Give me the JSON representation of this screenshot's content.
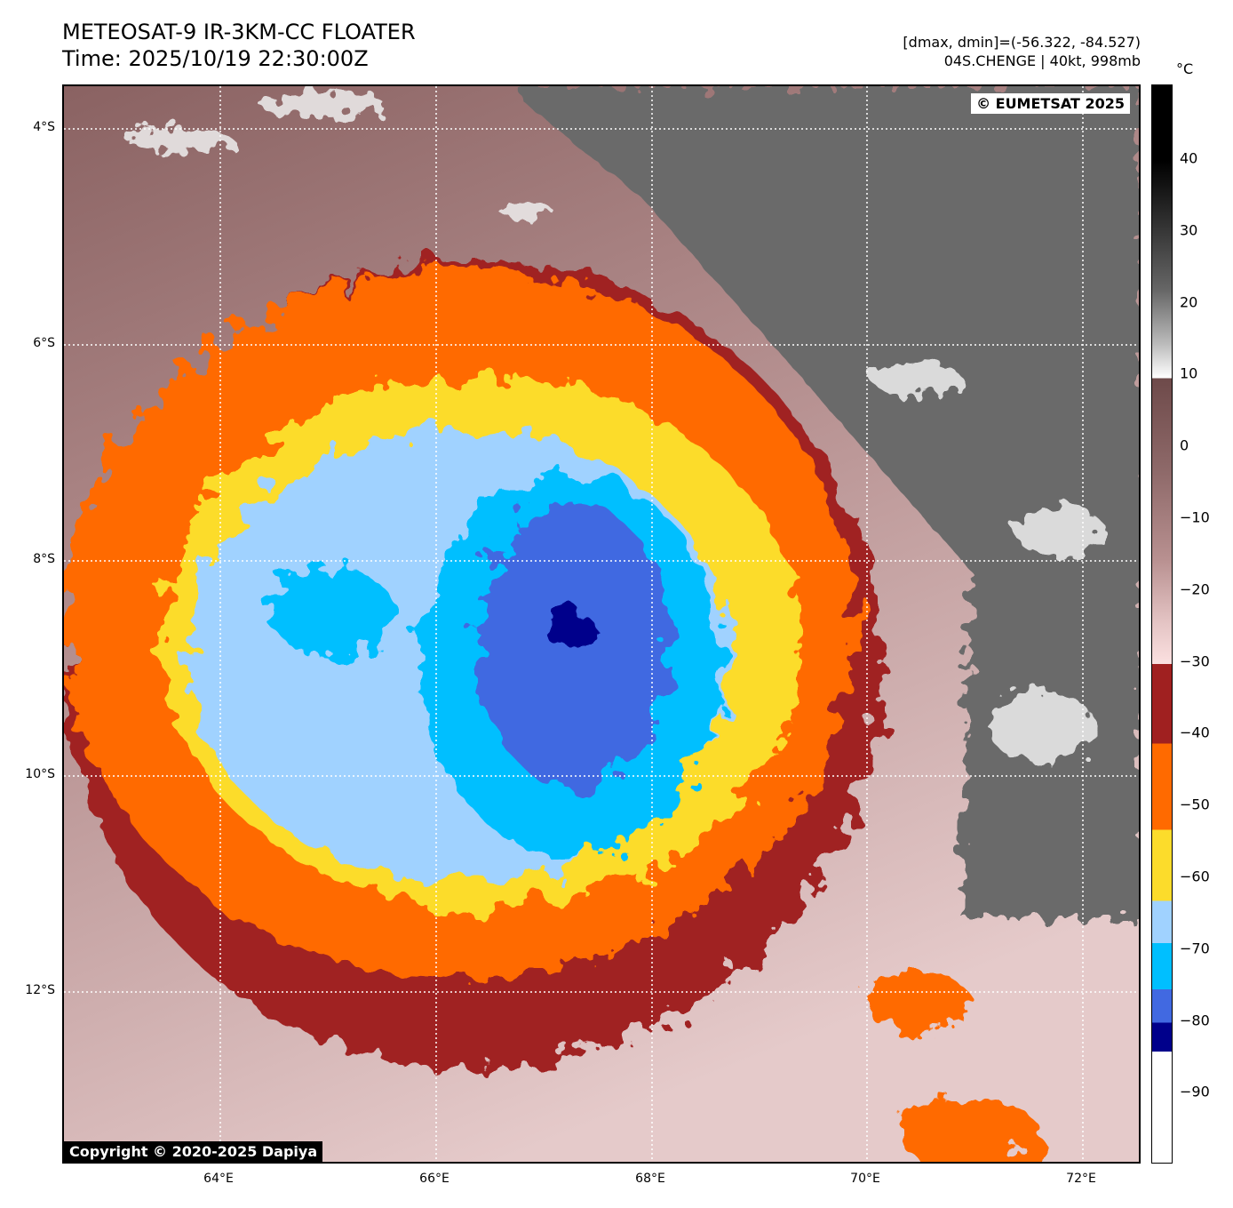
{
  "header": {
    "title": "METEOSAT-9 IR-3KM-CC FLOATER",
    "time": "Time: 2025/10/19 22:30:00Z",
    "range": "[dmax, dmin]=(-56.322, -84.527)",
    "storm": "04S.CHENGE | 40kt, 998mb"
  },
  "map": {
    "watermark_top": "© EUMETSAT 2025",
    "watermark_bottom": "Copyright © 2020-2025 Dapiya",
    "lat_labels": [
      "4°S",
      "6°S",
      "8°S",
      "10°S",
      "12°S"
    ],
    "lon_labels": [
      "64°E",
      "66°E",
      "68°E",
      "70°E",
      "72°E"
    ]
  },
  "colorbar": {
    "unit": "°C",
    "ticks": [
      "40",
      "30",
      "20",
      "10",
      "0",
      "−10",
      "−20",
      "−30",
      "−40",
      "−50",
      "−60",
      "−70",
      "−80",
      "−90"
    ],
    "colors": {
      "dark_red": "#a02020",
      "orange": "#ff6a00",
      "yellow": "#fcdc2b",
      "light_blue": "#a0d2ff",
      "cyan": "#00bfff",
      "blue": "#4169e1",
      "navy": "#00008b"
    }
  }
}
